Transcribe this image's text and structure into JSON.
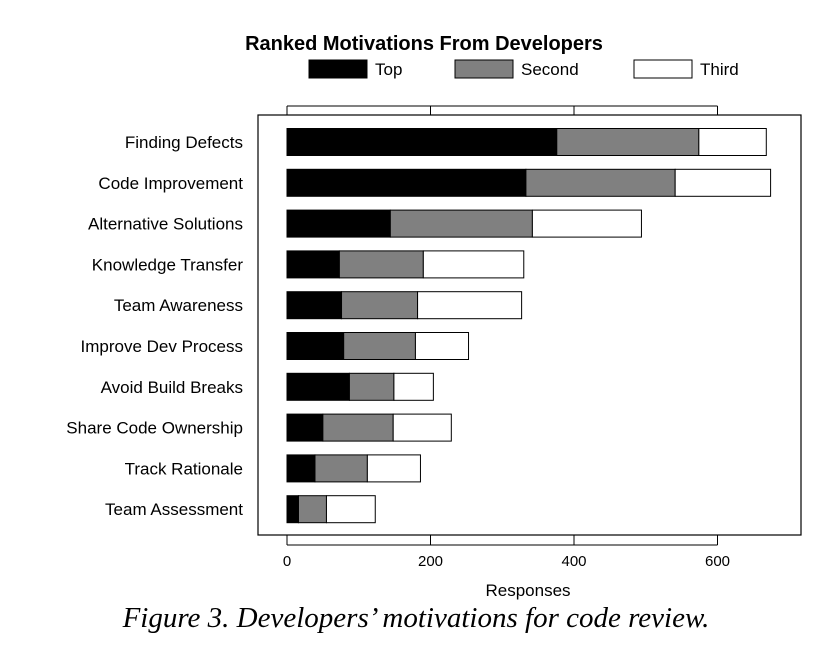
{
  "chart_data": {
    "type": "bar",
    "orientation": "horizontal",
    "stacked": true,
    "title": "Ranked Motivations From Developers",
    "xlabel": "Responses",
    "ylabel": "",
    "xlim": [
      0,
      720
    ],
    "xticks": [
      0,
      200,
      400,
      600
    ],
    "grid": false,
    "legend_position": "top",
    "categories": [
      "Finding Defects",
      "Code Improvement",
      "Alternative Solutions",
      "Knowledge Transfer",
      "Team Awareness",
      "Improve Dev Process",
      "Avoid Build Breaks",
      "Share Code Ownership",
      "Track Rationale",
      "Team Assessment"
    ],
    "series": [
      {
        "name": "Top",
        "color": "#000000",
        "values": [
          376,
          333,
          144,
          73,
          76,
          79,
          87,
          50,
          39,
          16
        ]
      },
      {
        "name": "Second",
        "color": "#808080",
        "values": [
          198,
          208,
          198,
          117,
          106,
          100,
          62,
          98,
          73,
          39
        ]
      },
      {
        "name": "Third",
        "color": "#ffffff",
        "values": [
          94,
          133,
          152,
          140,
          145,
          74,
          55,
          81,
          74,
          68
        ]
      }
    ]
  },
  "figure_caption": "Figure 3. Developers’ motivations for code review."
}
